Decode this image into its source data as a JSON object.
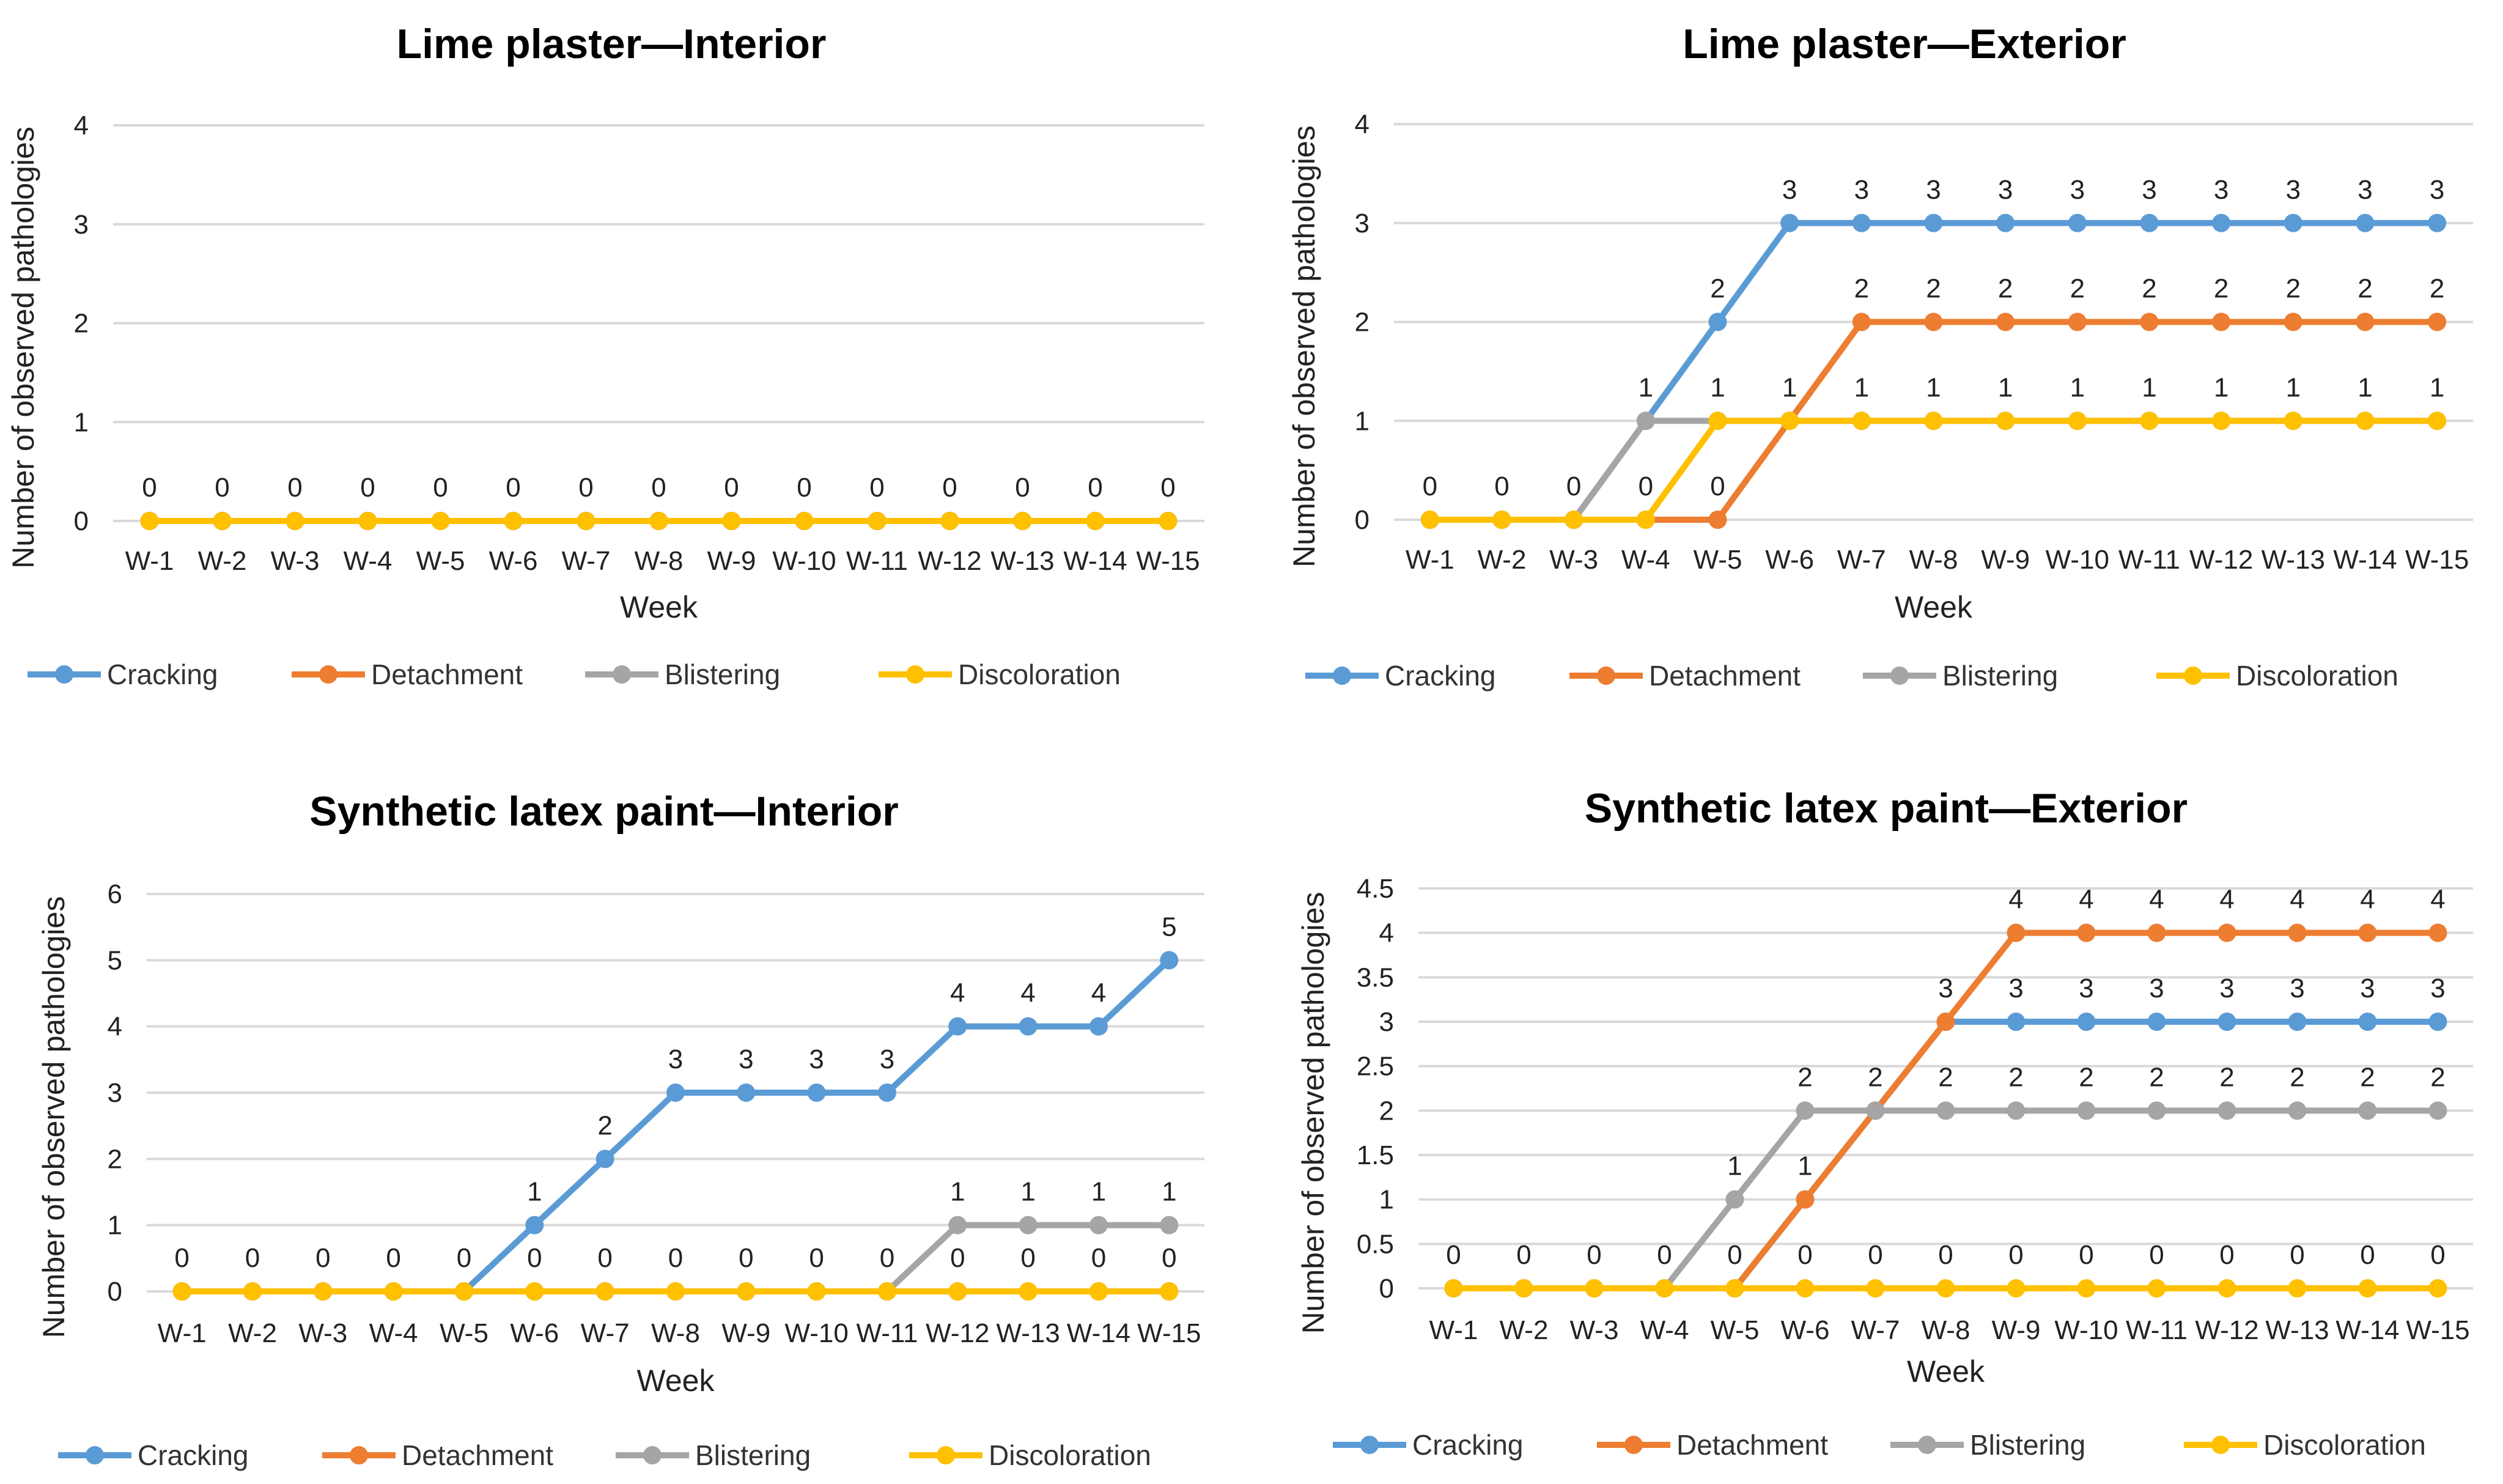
{
  "colors": {
    "Cracking": "#5b9bd5",
    "Detachment": "#ed7d31",
    "Blistering": "#a5a5a5",
    "Discoloration": "#ffc000",
    "grid": "#d9d9d9",
    "text": "#222222"
  },
  "chart_data": [
    {
      "type": "line",
      "title": "Lime plaster—Interior",
      "xlabel": "Week",
      "ylabel": "Number of observed pathologies",
      "ylim": [
        0,
        4
      ],
      "yticks": [
        "0",
        "1",
        "2",
        "3",
        "4"
      ],
      "categories": [
        "W-1",
        "W-2",
        "W-3",
        "W-4",
        "W-5",
        "W-6",
        "W-7",
        "W-8",
        "W-9",
        "W-10",
        "W-11",
        "W-12",
        "W-13",
        "W-14",
        "W-15"
      ],
      "legend_position": "bottom",
      "series": [
        {
          "name": "Cracking",
          "values": [
            0,
            0,
            0,
            0,
            0,
            0,
            0,
            0,
            0,
            0,
            0,
            0,
            0,
            0,
            0
          ],
          "labels": []
        },
        {
          "name": "Detachment",
          "values": [
            0,
            0,
            0,
            0,
            0,
            0,
            0,
            0,
            0,
            0,
            0,
            0,
            0,
            0,
            0
          ],
          "labels": []
        },
        {
          "name": "Blistering",
          "values": [
            0,
            0,
            0,
            0,
            0,
            0,
            0,
            0,
            0,
            0,
            0,
            0,
            0,
            0,
            0
          ],
          "labels": []
        },
        {
          "name": "Discoloration",
          "values": [
            0,
            0,
            0,
            0,
            0,
            0,
            0,
            0,
            0,
            0,
            0,
            0,
            0,
            0,
            0
          ],
          "labels": [
            "0",
            "0",
            "0",
            "0",
            "0",
            "0",
            "0",
            "0",
            "0",
            "0",
            "0",
            "0",
            "0",
            "0",
            "0"
          ]
        }
      ]
    },
    {
      "type": "line",
      "title": "Lime plaster—Exterior",
      "xlabel": "Week",
      "ylabel": "Number of observed pathologies",
      "ylim": [
        0,
        4
      ],
      "yticks": [
        "0",
        "1",
        "2",
        "3",
        "4"
      ],
      "categories": [
        "W-1",
        "W-2",
        "W-3",
        "W-4",
        "W-5",
        "W-6",
        "W-7",
        "W-8",
        "W-9",
        "W-10",
        "W-11",
        "W-12",
        "W-13",
        "W-14",
        "W-15"
      ],
      "legend_position": "bottom",
      "series": [
        {
          "name": "Cracking",
          "values": [
            0,
            0,
            0,
            1,
            2,
            3,
            3,
            3,
            3,
            3,
            3,
            3,
            3,
            3,
            3
          ],
          "labels": [
            "",
            "",
            "",
            "",
            "2",
            "3",
            "3",
            "3",
            "3",
            "3",
            "3",
            "3",
            "3",
            "3",
            "3"
          ]
        },
        {
          "name": "Detachment",
          "values": [
            0,
            0,
            0,
            0,
            0,
            1,
            2,
            2,
            2,
            2,
            2,
            2,
            2,
            2,
            2
          ],
          "labels": [
            "",
            "",
            "",
            "",
            "0",
            "",
            "2",
            "2",
            "2",
            "2",
            "2",
            "2",
            "2",
            "2",
            "2"
          ]
        },
        {
          "name": "Blistering",
          "values": [
            0,
            0,
            0,
            1,
            1,
            1,
            1,
            1,
            1,
            1,
            1,
            1,
            1,
            1,
            1
          ],
          "labels": [
            "",
            "",
            "0",
            "1",
            "",
            "",
            "",
            "",
            "",
            "",
            "",
            "",
            "",
            "",
            ""
          ]
        },
        {
          "name": "Discoloration",
          "values": [
            0,
            0,
            0,
            0,
            1,
            1,
            1,
            1,
            1,
            1,
            1,
            1,
            1,
            1,
            1
          ],
          "labels": [
            "0",
            "0",
            "",
            "0",
            "1",
            "1",
            "1",
            "1",
            "1",
            "1",
            "1",
            "1",
            "1",
            "1",
            "1"
          ]
        }
      ]
    },
    {
      "type": "line",
      "title": "Synthetic latex paint—Interior",
      "xlabel": "Week",
      "ylabel": "Number of observed pathologies",
      "ylim": [
        0,
        6
      ],
      "yticks": [
        "0",
        "1",
        "2",
        "3",
        "4",
        "5",
        "6"
      ],
      "categories": [
        "W-1",
        "W-2",
        "W-3",
        "W-4",
        "W-5",
        "W-6",
        "W-7",
        "W-8",
        "W-9",
        "W-10",
        "W-11",
        "W-12",
        "W-13",
        "W-14",
        "W-15"
      ],
      "legend_position": "bottom",
      "series": [
        {
          "name": "Cracking",
          "values": [
            0,
            0,
            0,
            0,
            0,
            1,
            2,
            3,
            3,
            3,
            3,
            4,
            4,
            4,
            5
          ],
          "labels": [
            "",
            "",
            "",
            "",
            "",
            "1",
            "2",
            "3",
            "3",
            "3",
            "3",
            "4",
            "4",
            "4",
            "5"
          ]
        },
        {
          "name": "Detachment",
          "values": [
            0,
            0,
            0,
            0,
            0,
            0,
            0,
            0,
            0,
            0,
            0,
            0,
            0,
            0,
            0
          ],
          "labels": [
            "",
            "",
            "",
            "",
            "",
            "",
            "",
            "",
            "",
            "",
            "",
            "0",
            "0",
            "0",
            "0"
          ]
        },
        {
          "name": "Blistering",
          "values": [
            0,
            0,
            0,
            0,
            0,
            0,
            0,
            0,
            0,
            0,
            0,
            1,
            1,
            1,
            1
          ],
          "labels": [
            "",
            "",
            "",
            "",
            "",
            "",
            "",
            "",
            "",
            "",
            "",
            "1",
            "1",
            "1",
            "1"
          ]
        },
        {
          "name": "Discoloration",
          "values": [
            0,
            0,
            0,
            0,
            0,
            0,
            0,
            0,
            0,
            0,
            0,
            0,
            0,
            0,
            0
          ],
          "labels": [
            "0",
            "0",
            "0",
            "0",
            "0",
            "0",
            "0",
            "0",
            "0",
            "0",
            "0",
            "",
            "",
            "",
            ""
          ]
        }
      ]
    },
    {
      "type": "line",
      "title": "Synthetic latex paint—Exterior",
      "xlabel": "Week",
      "ylabel": "Number of observed pathologies",
      "ylim": [
        0,
        4.5
      ],
      "yticks": [
        "0",
        "0.5",
        "1",
        "1.5",
        "2",
        "2.5",
        "3",
        "3.5",
        "4",
        "4.5"
      ],
      "categories": [
        "W-1",
        "W-2",
        "W-3",
        "W-4",
        "W-5",
        "W-6",
        "W-7",
        "W-8",
        "W-9",
        "W-10",
        "W-11",
        "W-12",
        "W-13",
        "W-14",
        "W-15"
      ],
      "legend_position": "bottom",
      "series": [
        {
          "name": "Cracking",
          "values": [
            0,
            0,
            0,
            0,
            0,
            1,
            2,
            3,
            3,
            3,
            3,
            3,
            3,
            3,
            3
          ],
          "labels": [
            "",
            "",
            "",
            "",
            "",
            "",
            "",
            "",
            "3",
            "3",
            "3",
            "3",
            "3",
            "3",
            "3"
          ]
        },
        {
          "name": "Detachment",
          "values": [
            0,
            0,
            0,
            0,
            0,
            1,
            2,
            3,
            4,
            4,
            4,
            4,
            4,
            4,
            4
          ],
          "labels": [
            "",
            "",
            "",
            "",
            "",
            "1",
            "",
            "3",
            "4",
            "4",
            "4",
            "4",
            "4",
            "4",
            "4"
          ]
        },
        {
          "name": "Blistering",
          "values": [
            0,
            0,
            0,
            0,
            1,
            2,
            2,
            2,
            2,
            2,
            2,
            2,
            2,
            2,
            2
          ],
          "labels": [
            "",
            "",
            "",
            "",
            "1",
            "2",
            "2",
            "2",
            "2",
            "2",
            "2",
            "2",
            "2",
            "2",
            "2"
          ]
        },
        {
          "name": "Discoloration",
          "values": [
            0,
            0,
            0,
            0,
            0,
            0,
            0,
            0,
            0,
            0,
            0,
            0,
            0,
            0,
            0
          ],
          "labels": [
            "0",
            "0",
            "0",
            "0",
            "0",
            "0",
            "0",
            "0",
            "0",
            "0",
            "0",
            "0",
            "0",
            "0",
            "0"
          ]
        }
      ]
    }
  ]
}
